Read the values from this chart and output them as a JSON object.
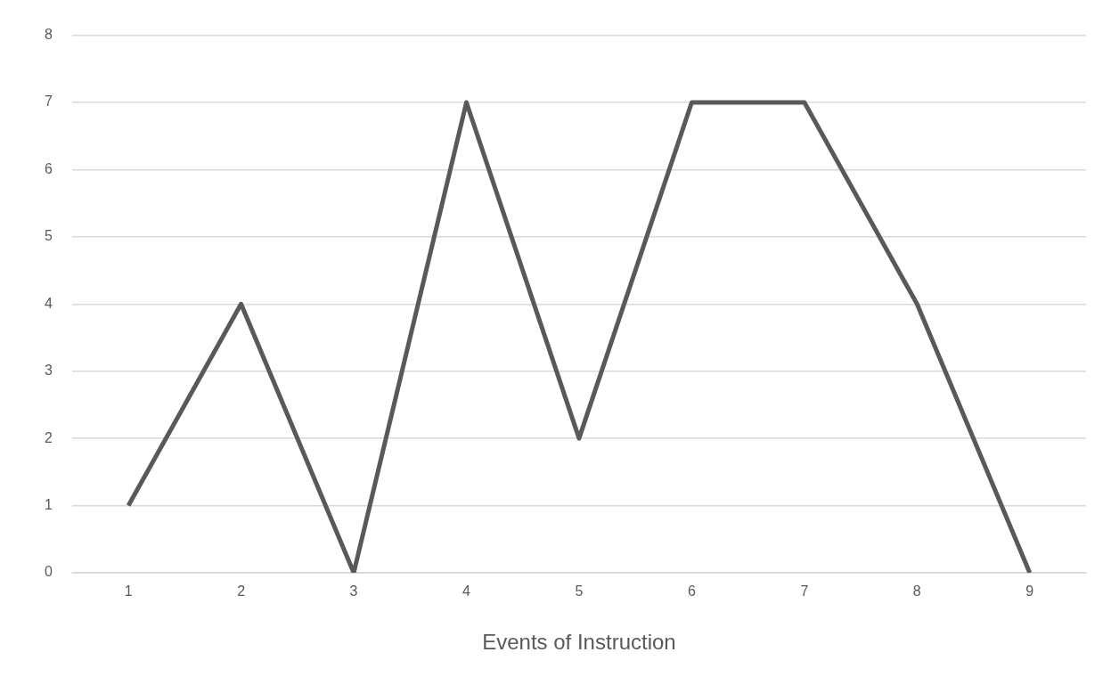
{
  "chart_data": {
    "type": "line",
    "xlabel": "Events of Instruction",
    "categories": [
      "1",
      "2",
      "3",
      "4",
      "5",
      "6",
      "7",
      "8",
      "9"
    ],
    "series": [
      {
        "color": "#595959",
        "values": [
          1,
          4,
          0,
          7,
          2,
          7,
          7,
          4,
          0
        ]
      }
    ],
    "ylim": [
      0,
      8
    ],
    "yticks": [
      0,
      1,
      2,
      3,
      4,
      5,
      6,
      7,
      8
    ],
    "grid": "y",
    "legend": false,
    "marker": "none",
    "line_style": "solid"
  }
}
